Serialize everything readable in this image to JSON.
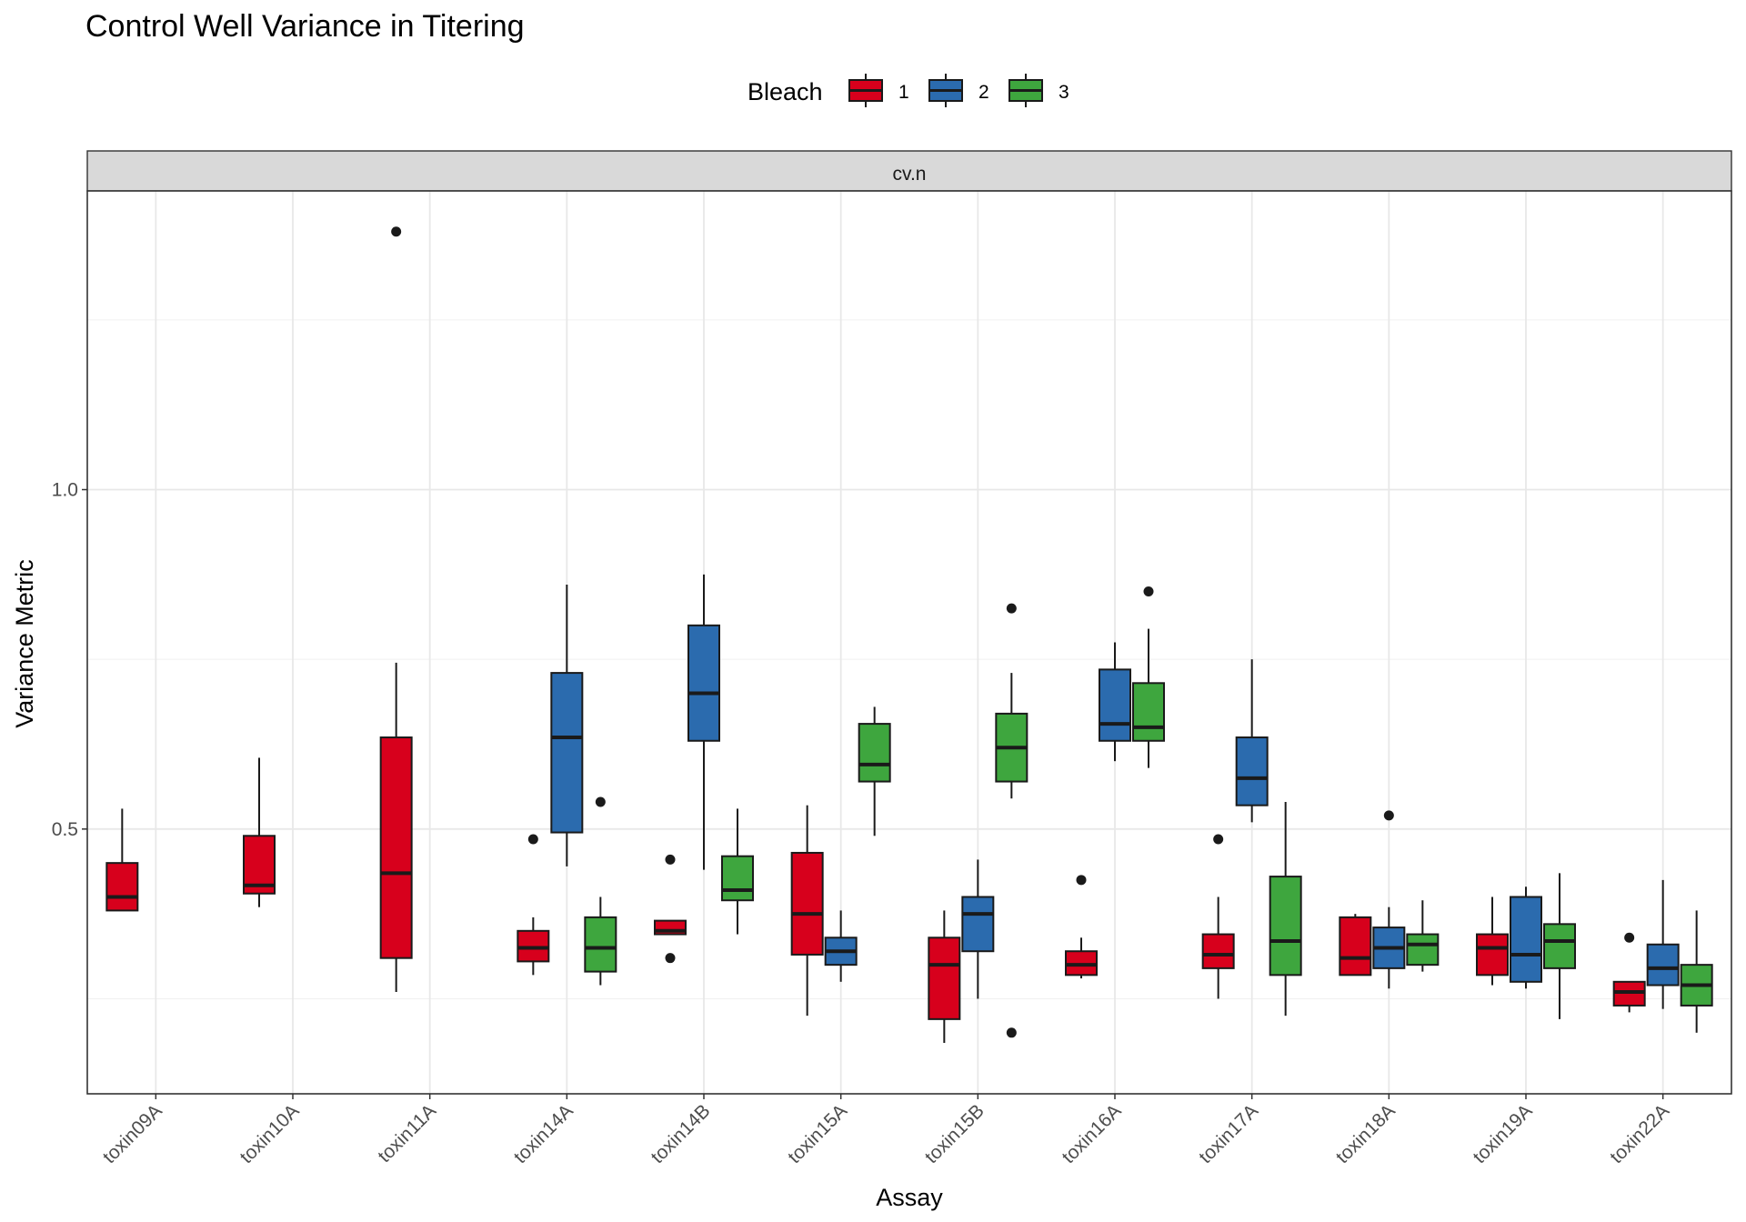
{
  "chart_data": {
    "type": "boxplot",
    "title": "Control Well Variance in Titering",
    "xlabel": "Assay",
    "ylabel": "Variance Metric",
    "facet_label": "cv.n",
    "legend": {
      "title": "Bleach",
      "position": "top",
      "entries": [
        {
          "key": "1",
          "label": "1",
          "color": "#E41A1C"
        },
        {
          "key": "2",
          "label": "2",
          "color": "#377EB8"
        },
        {
          "key": "3",
          "label": "3",
          "color": "#4DAF4A"
        }
      ]
    },
    "colors": {
      "1": "#D7001C",
      "2": "#2B6BAE",
      "3": "#3EA63E"
    },
    "y_ticks": [
      {
        "value": 0.5,
        "label": "0.5"
      },
      {
        "value": 1.0,
        "label": "1.0"
      }
    ],
    "y_minor_gridlines": [
      0.25,
      0.75,
      1.25
    ],
    "ylim": [
      0.11,
      1.44
    ],
    "categories": [
      "toxin09A",
      "toxin10A",
      "toxin11A",
      "toxin14A",
      "toxin14B",
      "toxin15A",
      "toxin15B",
      "toxin16A",
      "toxin17A",
      "toxin18A",
      "toxin19A",
      "toxin22A"
    ],
    "boxes": [
      {
        "assay": "toxin09A",
        "bleach": "1",
        "lower_whisker": 0.38,
        "q1": 0.38,
        "median": 0.4,
        "q3": 0.45,
        "upper_whisker": 0.53,
        "outliers": []
      },
      {
        "assay": "toxin10A",
        "bleach": "1",
        "lower_whisker": 0.385,
        "q1": 0.405,
        "median": 0.417,
        "q3": 0.49,
        "upper_whisker": 0.605,
        "outliers": []
      },
      {
        "assay": "toxin11A",
        "bleach": "1",
        "lower_whisker": 0.26,
        "q1": 0.31,
        "median": 0.435,
        "q3": 0.635,
        "upper_whisker": 0.745,
        "outliers": [
          1.38
        ]
      },
      {
        "assay": "toxin14A",
        "bleach": "1",
        "lower_whisker": 0.285,
        "q1": 0.305,
        "median": 0.325,
        "q3": 0.35,
        "upper_whisker": 0.37,
        "outliers": [
          0.485
        ]
      },
      {
        "assay": "toxin14A",
        "bleach": "2",
        "lower_whisker": 0.445,
        "q1": 0.495,
        "median": 0.635,
        "q3": 0.73,
        "upper_whisker": 0.86,
        "outliers": []
      },
      {
        "assay": "toxin14A",
        "bleach": "3",
        "lower_whisker": 0.27,
        "q1": 0.29,
        "median": 0.325,
        "q3": 0.37,
        "upper_whisker": 0.4,
        "outliers": [
          0.54
        ]
      },
      {
        "assay": "toxin14B",
        "bleach": "1",
        "lower_whisker": 0.345,
        "q1": 0.345,
        "median": 0.35,
        "q3": 0.365,
        "upper_whisker": 0.365,
        "outliers": [
          0.455,
          0.31
        ]
      },
      {
        "assay": "toxin14B",
        "bleach": "2",
        "lower_whisker": 0.44,
        "q1": 0.63,
        "median": 0.7,
        "q3": 0.8,
        "upper_whisker": 0.875,
        "outliers": []
      },
      {
        "assay": "toxin14B",
        "bleach": "3",
        "lower_whisker": 0.345,
        "q1": 0.395,
        "median": 0.41,
        "q3": 0.46,
        "upper_whisker": 0.53,
        "outliers": []
      },
      {
        "assay": "toxin15A",
        "bleach": "1",
        "lower_whisker": 0.225,
        "q1": 0.315,
        "median": 0.375,
        "q3": 0.465,
        "upper_whisker": 0.535,
        "outliers": []
      },
      {
        "assay": "toxin15A",
        "bleach": "2",
        "lower_whisker": 0.275,
        "q1": 0.3,
        "median": 0.32,
        "q3": 0.34,
        "upper_whisker": 0.38,
        "outliers": []
      },
      {
        "assay": "toxin15A",
        "bleach": "3",
        "lower_whisker": 0.49,
        "q1": 0.57,
        "median": 0.595,
        "q3": 0.655,
        "upper_whisker": 0.68,
        "outliers": []
      },
      {
        "assay": "toxin15B",
        "bleach": "1",
        "lower_whisker": 0.185,
        "q1": 0.22,
        "median": 0.3,
        "q3": 0.34,
        "upper_whisker": 0.38,
        "outliers": []
      },
      {
        "assay": "toxin15B",
        "bleach": "2",
        "lower_whisker": 0.25,
        "q1": 0.32,
        "median": 0.375,
        "q3": 0.4,
        "upper_whisker": 0.455,
        "outliers": []
      },
      {
        "assay": "toxin15B",
        "bleach": "3",
        "lower_whisker": 0.545,
        "q1": 0.57,
        "median": 0.62,
        "q3": 0.67,
        "upper_whisker": 0.73,
        "outliers": [
          0.825,
          0.2
        ]
      },
      {
        "assay": "toxin16A",
        "bleach": "1",
        "lower_whisker": 0.28,
        "q1": 0.285,
        "median": 0.3,
        "q3": 0.32,
        "upper_whisker": 0.34,
        "outliers": [
          0.425
        ]
      },
      {
        "assay": "toxin16A",
        "bleach": "2",
        "lower_whisker": 0.6,
        "q1": 0.63,
        "median": 0.655,
        "q3": 0.735,
        "upper_whisker": 0.775,
        "outliers": []
      },
      {
        "assay": "toxin16A",
        "bleach": "3",
        "lower_whisker": 0.59,
        "q1": 0.63,
        "median": 0.65,
        "q3": 0.715,
        "upper_whisker": 0.795,
        "outliers": [
          0.85
        ]
      },
      {
        "assay": "toxin17A",
        "bleach": "1",
        "lower_whisker": 0.25,
        "q1": 0.295,
        "median": 0.315,
        "q3": 0.345,
        "upper_whisker": 0.4,
        "outliers": [
          0.485
        ]
      },
      {
        "assay": "toxin17A",
        "bleach": "2",
        "lower_whisker": 0.51,
        "q1": 0.535,
        "median": 0.575,
        "q3": 0.635,
        "upper_whisker": 0.75,
        "outliers": []
      },
      {
        "assay": "toxin17A",
        "bleach": "3",
        "lower_whisker": 0.225,
        "q1": 0.285,
        "median": 0.335,
        "q3": 0.43,
        "upper_whisker": 0.54,
        "outliers": []
      },
      {
        "assay": "toxin18A",
        "bleach": "1",
        "lower_whisker": 0.285,
        "q1": 0.285,
        "median": 0.31,
        "q3": 0.37,
        "upper_whisker": 0.375,
        "outliers": []
      },
      {
        "assay": "toxin18A",
        "bleach": "2",
        "lower_whisker": 0.265,
        "q1": 0.295,
        "median": 0.325,
        "q3": 0.355,
        "upper_whisker": 0.385,
        "outliers": [
          0.52
        ]
      },
      {
        "assay": "toxin18A",
        "bleach": "3",
        "lower_whisker": 0.29,
        "q1": 0.3,
        "median": 0.33,
        "q3": 0.345,
        "upper_whisker": 0.395,
        "outliers": []
      },
      {
        "assay": "toxin19A",
        "bleach": "1",
        "lower_whisker": 0.27,
        "q1": 0.285,
        "median": 0.325,
        "q3": 0.345,
        "upper_whisker": 0.4,
        "outliers": []
      },
      {
        "assay": "toxin19A",
        "bleach": "2",
        "lower_whisker": 0.265,
        "q1": 0.275,
        "median": 0.315,
        "q3": 0.4,
        "upper_whisker": 0.415,
        "outliers": []
      },
      {
        "assay": "toxin19A",
        "bleach": "3",
        "lower_whisker": 0.22,
        "q1": 0.295,
        "median": 0.335,
        "q3": 0.36,
        "upper_whisker": 0.435,
        "outliers": []
      },
      {
        "assay": "toxin22A",
        "bleach": "1",
        "lower_whisker": 0.23,
        "q1": 0.24,
        "median": 0.26,
        "q3": 0.275,
        "upper_whisker": 0.275,
        "outliers": [
          0.34
        ]
      },
      {
        "assay": "toxin22A",
        "bleach": "2",
        "lower_whisker": 0.235,
        "q1": 0.27,
        "median": 0.295,
        "q3": 0.33,
        "upper_whisker": 0.425,
        "outliers": []
      },
      {
        "assay": "toxin22A",
        "bleach": "3",
        "lower_whisker": 0.2,
        "q1": 0.24,
        "median": 0.27,
        "q3": 0.3,
        "upper_whisker": 0.38,
        "outliers": []
      }
    ]
  }
}
